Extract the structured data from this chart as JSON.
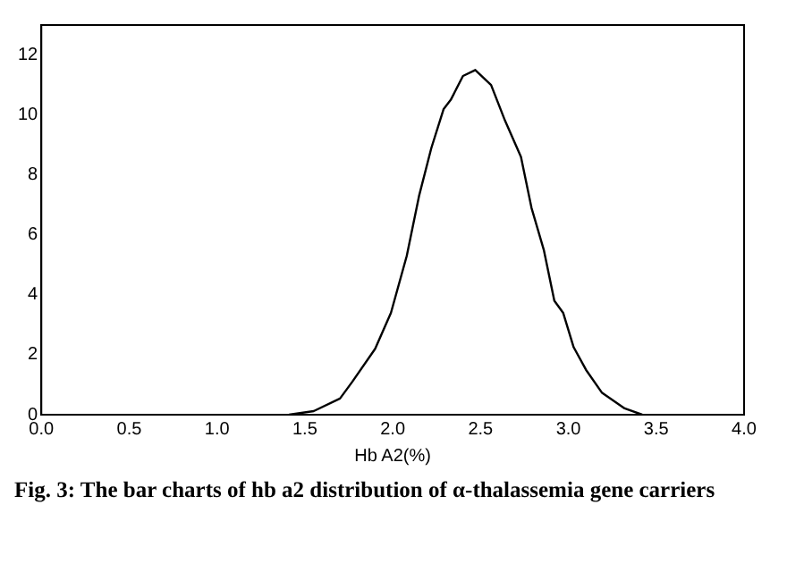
{
  "chart_data": {
    "type": "line",
    "xlabel": "Hb A2(%)",
    "annotations": [
      "Fig. 3: The bar charts of hb a2 distribution of α-thalassemia gene carriers"
    ],
    "series": [
      {
        "color": "#000000",
        "x": [
          1.41,
          1.55,
          1.7,
          1.77,
          1.9,
          1.99,
          2.08,
          2.15,
          2.22,
          2.29,
          2.33,
          2.4,
          2.47,
          2.56,
          2.64,
          2.73,
          2.79,
          2.86,
          2.92,
          2.97,
          3.03,
          3.1,
          3.19,
          3.32,
          3.42
        ],
        "values": [
          0,
          0.12,
          0.54,
          1.1,
          2.2,
          3.4,
          5.3,
          7.3,
          8.9,
          10.2,
          10.5,
          11.3,
          11.5,
          11.0,
          9.8,
          8.6,
          6.9,
          5.5,
          3.8,
          3.4,
          2.25,
          1.5,
          0.74,
          0.21,
          0
        ]
      }
    ],
    "xlim": [
      0,
      4
    ],
    "xticks": [
      {
        "value": 0,
        "label": "0.0"
      },
      {
        "value": 0.5,
        "label": "0.5"
      },
      {
        "value": 1,
        "label": "1.0"
      },
      {
        "value": 1.5,
        "label": "1.5"
      },
      {
        "value": 2,
        "label": "2.0"
      },
      {
        "value": 2.5,
        "label": "2.5"
      },
      {
        "value": 3,
        "label": "3.0"
      },
      {
        "value": 3.5,
        "label": "3.5"
      },
      {
        "value": 4,
        "label": "4.0"
      }
    ],
    "ylim": [
      0,
      13
    ],
    "yticks": [
      0,
      2,
      4,
      6,
      8,
      10,
      12
    ],
    "grid": false,
    "legend": false,
    "marker": "none",
    "line_style": "solid"
  }
}
